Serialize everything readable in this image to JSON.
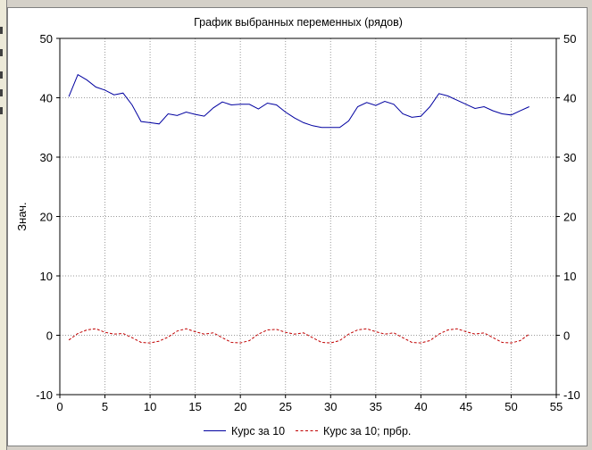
{
  "chart_data": {
    "type": "line",
    "title": "График выбранных переменных (рядов)",
    "xlabel": "",
    "ylabel": "Знач.",
    "xlim": [
      0,
      55
    ],
    "ylim": [
      -10,
      50
    ],
    "xticks": [
      "0",
      "5",
      "10",
      "15",
      "20",
      "25",
      "30",
      "35",
      "40",
      "45",
      "50",
      "55"
    ],
    "yticks": [
      "-10",
      "0",
      "10",
      "20",
      "30",
      "40",
      "50"
    ],
    "grid": true,
    "legend_position": "bottom",
    "series": [
      {
        "name": "Курс за 10",
        "color": "#0000a0",
        "style": "solid",
        "x": [
          1,
          2,
          3,
          4,
          5,
          6,
          7,
          8,
          9,
          10,
          11,
          12,
          13,
          14,
          15,
          16,
          17,
          18,
          19,
          20,
          21,
          22,
          23,
          24,
          25,
          26,
          27,
          28,
          29,
          30,
          31,
          32,
          33,
          34,
          35,
          36,
          37,
          38,
          39,
          40,
          41,
          42,
          43,
          44,
          45,
          46,
          47,
          48,
          49,
          50,
          51,
          52
        ],
        "values": [
          40.2,
          43.9,
          43.0,
          41.8,
          41.3,
          40.5,
          40.8,
          38.8,
          36.0,
          35.8,
          35.6,
          37.3,
          37.0,
          37.6,
          37.2,
          36.9,
          38.3,
          39.3,
          38.8,
          38.9,
          38.9,
          38.1,
          39.1,
          38.8,
          37.6,
          36.6,
          35.8,
          35.3,
          35.0,
          35.0,
          35.0,
          36.1,
          38.5,
          39.2,
          38.7,
          39.4,
          38.9,
          37.3,
          36.7,
          36.9,
          38.5,
          40.7,
          40.3,
          39.6,
          38.9,
          38.2,
          38.5,
          37.8,
          37.3,
          37.1,
          37.8,
          38.5
        ]
      },
      {
        "name": "Курс за 10; прбр.",
        "color": "#c00000",
        "style": "dashed",
        "x": [
          1,
          2,
          3,
          4,
          5,
          6,
          7,
          8,
          9,
          10,
          11,
          12,
          13,
          14,
          15,
          16,
          17,
          18,
          19,
          20,
          21,
          22,
          23,
          24,
          25,
          26,
          27,
          28,
          29,
          30,
          31,
          32,
          33,
          34,
          35,
          36,
          37,
          38,
          39,
          40,
          41,
          42,
          43,
          44,
          45,
          46,
          47,
          48,
          49,
          50,
          51,
          52
        ],
        "values": [
          -0.8,
          0.3,
          0.9,
          1.1,
          0.5,
          0.2,
          0.3,
          -0.4,
          -1.2,
          -1.3,
          -1.0,
          -0.3,
          0.7,
          1.1,
          0.6,
          0.2,
          0.4,
          -0.4,
          -1.2,
          -1.3,
          -0.9,
          0.2,
          0.9,
          1.0,
          0.5,
          0.2,
          0.4,
          -0.4,
          -1.2,
          -1.3,
          -0.9,
          0.2,
          0.9,
          1.1,
          0.6,
          0.2,
          0.4,
          -0.4,
          -1.2,
          -1.3,
          -0.9,
          0.2,
          0.9,
          1.1,
          0.6,
          0.2,
          0.4,
          -0.4,
          -1.2,
          -1.3,
          -0.9,
          0.2
        ]
      }
    ]
  }
}
